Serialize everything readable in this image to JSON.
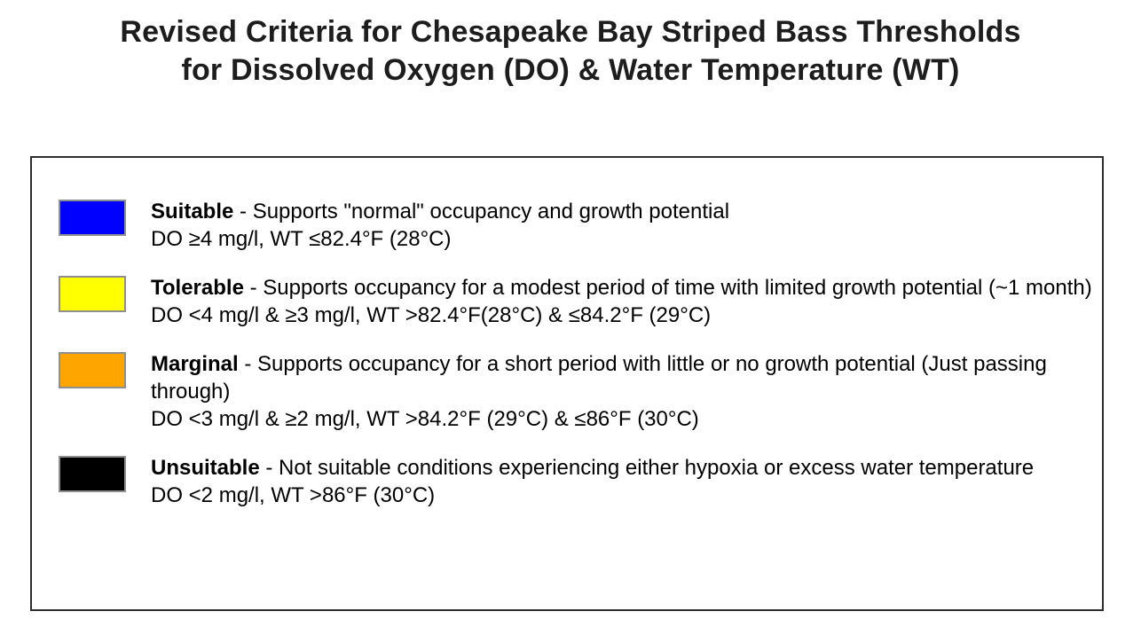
{
  "title": {
    "line1": "Revised Criteria for Chesapeake Bay Striped Bass Thresholds",
    "line2": "for Dissolved Oxygen (DO) & Water Temperature (WT)"
  },
  "legend": {
    "separator": " - ",
    "swatch_border_color": "#8f8f8f",
    "items": [
      {
        "label": "Suitable",
        "description": "Supports \"normal\" occupancy and growth potential",
        "criteria": "DO ≥4 mg/l, WT ≤82.4°F (28°C)",
        "color": "#0000ff",
        "color_name": "blue"
      },
      {
        "label": "Tolerable",
        "description": "Supports occupancy for a modest period of time with limited growth potential (~1 month)",
        "criteria": "DO <4 mg/l & ≥3 mg/l, WT >82.4°F(28°C) & ≤84.2°F (29°C)",
        "color": "#ffff00",
        "color_name": "yellow"
      },
      {
        "label": "Marginal",
        "description": "Supports occupancy for a short period with little or no growth potential (Just passing through)",
        "criteria": "DO <3 mg/l & ≥2 mg/l, WT >84.2°F (29°C) & ≤86°F (30°C)",
        "color": "#ffa500",
        "color_name": "orange"
      },
      {
        "label": "Unsuitable",
        "description": "Not suitable conditions experiencing either hypoxia or excess water temperature",
        "criteria": "DO <2 mg/l, WT >86°F (30°C)",
        "color": "#000000",
        "color_name": "black"
      }
    ]
  }
}
